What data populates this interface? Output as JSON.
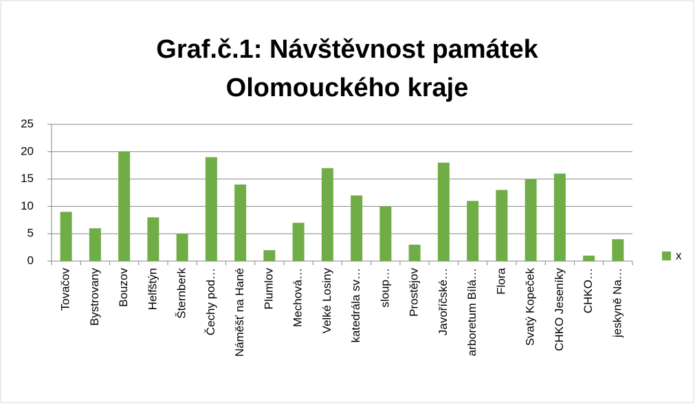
{
  "chart_data": {
    "type": "bar",
    "title": "Graf.č.1: Návštěvnost památek Olomouckého kraje",
    "categories": [
      "Tovačov",
      "Bystrovany",
      "Bouzov",
      "Helfštýn",
      "Šternberk",
      "Čechy pod…",
      "Náměšť na Hané",
      "Plumlov",
      "Mechová…",
      "Velké Losiny",
      "katedrála sv…",
      "sloup…",
      "Prostějov",
      "Javoříčské…",
      "arboretum Bílá…",
      "Flora",
      "Svatý Kopeček",
      "CHKO Jeseníky",
      "CHKO…",
      "jeskyně Na…"
    ],
    "series": [
      {
        "name": "x",
        "color": "#70ad47",
        "values": [
          9,
          6,
          20,
          8,
          5,
          19,
          14,
          2,
          7,
          17,
          12,
          10,
          3,
          18,
          11,
          13,
          15,
          16,
          1,
          4
        ]
      }
    ],
    "ylim": [
      0,
      25
    ],
    "yticks": [
      0,
      5,
      10,
      15,
      20,
      25
    ],
    "grid": true,
    "legend": "right"
  }
}
